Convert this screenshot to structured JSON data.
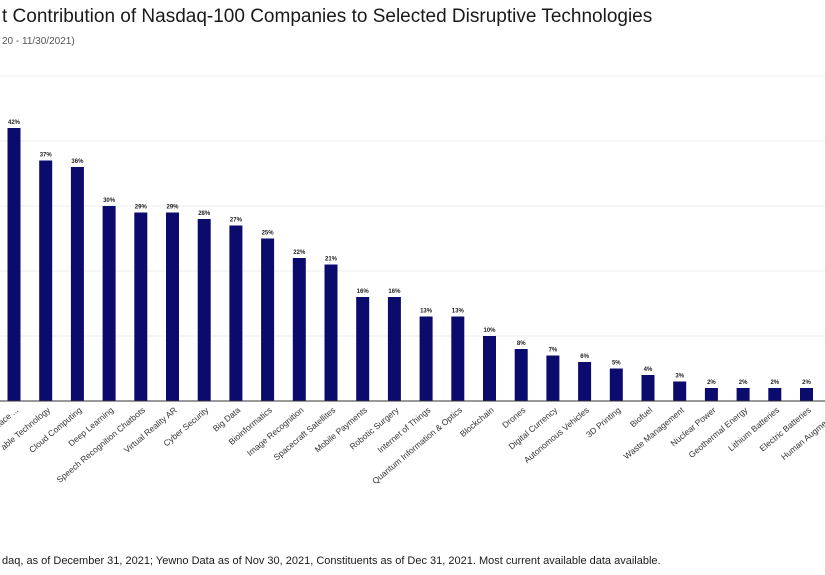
{
  "title": "t Contribution of Nasdaq-100 Companies to Selected Disruptive Technologies",
  "subtitle": "20 - 11/30/2021)",
  "footnote": "daq, as of December 31, 2021; Yewno Data as of Nov 30, 2021, Constituents as of Dec 31, 2021. Most current available data available.",
  "colors": {
    "bar": "#0b0b6e",
    "grid": "#ececec",
    "axis": "#333333"
  },
  "chart_data": {
    "type": "bar",
    "categories": [
      "Artificial Intelligence",
      "Wearable Technology",
      "Cloud Computing",
      "Deep Learning",
      "Speech Recognition Chatbots",
      "Virtual Reality AR",
      "Cyber Security",
      "Big Data",
      "Bioinformatics",
      "Image Recognition",
      "Spacecraft Satellites",
      "Mobile Payments",
      "Robotic Surgery",
      "Internet of Things",
      "Quantum Information & Optics",
      "Blockchain",
      "Drones",
      "Digital Currency",
      "Autonomous Vehicles",
      "3D Printing",
      "Biofuel",
      "Waste Management",
      "Nuclear Power",
      "Geothermal Energy",
      "Lithium Batteries",
      "Electric Batteries",
      "Human Augmentation"
    ],
    "tick_labels": [
      "...ace ...",
      "able Technology",
      "Cloud Computing",
      "Deep Learning",
      "Speech Recognition Chatbots",
      "Virtual Reality AR",
      "Cyber Security",
      "Big Data",
      "Bioinformatics",
      "Image Recognition",
      "Spacecraft Satellites",
      "Mobile Payments",
      "Robotic Surgery",
      "Internet of Things",
      "Quantum Information & Optics",
      "Blockchain",
      "Drones",
      "Digital Currency",
      "Autonomous Vehicles",
      "3D Printing",
      "Biofuel",
      "Waste Management",
      "Nuclear Power",
      "Geothermal Energy",
      "Lithium Batteries",
      "Electric Batteries",
      "Human Augmentatio"
    ],
    "values": [
      42,
      37,
      36,
      30,
      29,
      29,
      28,
      27,
      25,
      22,
      21,
      16,
      16,
      13,
      13,
      10,
      8,
      7,
      6,
      5,
      4,
      3,
      2,
      2,
      2,
      2,
      0
    ],
    "value_labels": [
      "42%",
      "37%",
      "36%",
      "30%",
      "29%",
      "29%",
      "28%",
      "27%",
      "25%",
      "22%",
      "21%",
      "16%",
      "16%",
      "13%",
      "13%",
      "10%",
      "8%",
      "7%",
      "6%",
      "5%",
      "4%",
      "3%",
      "2%",
      "2%",
      "2%",
      "2%",
      ""
    ],
    "ylim": [
      0,
      50
    ],
    "grid": true,
    "legend": "none",
    "xlabel": "",
    "ylabel": ""
  }
}
